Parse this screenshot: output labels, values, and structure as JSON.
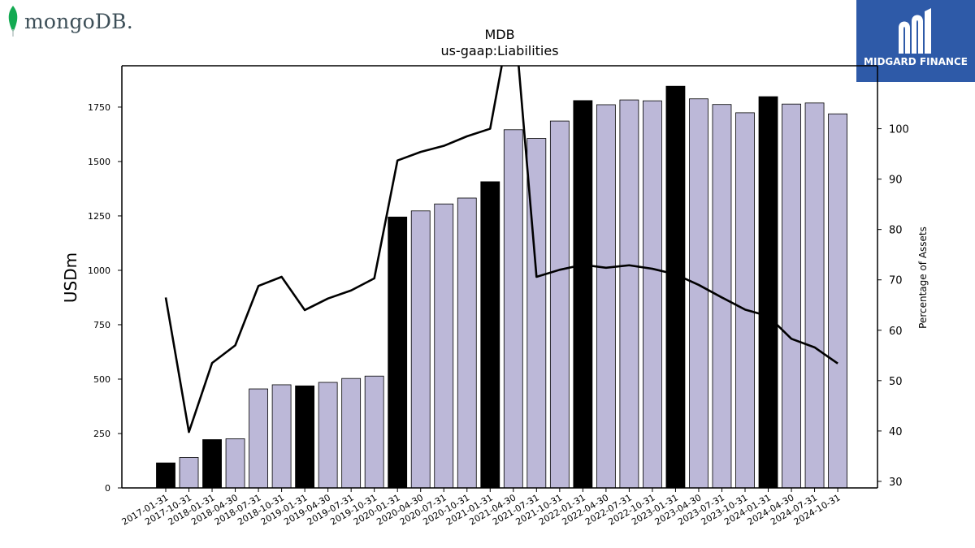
{
  "brand": {
    "left_logo_text": "mongoDB.",
    "left_logo_icon": "leaf-icon",
    "right_logo_text": "MIDGARD FINANCE",
    "right_logo_icon": "midgard-m-icon",
    "right_logo_bg": "#2e5aa8"
  },
  "chart_data": {
    "type": "bar",
    "title": "MDB",
    "subtitle": "us-gaap:Liabilities",
    "ylabel": "USDm",
    "y2label": "Percentage of Assets",
    "ylim": [
      0,
      1940
    ],
    "y2lim": [
      28.7,
      112.5
    ],
    "yticks": [
      0,
      250,
      500,
      750,
      1000,
      1250,
      1500,
      1750
    ],
    "y2ticks": [
      30,
      40,
      50,
      60,
      70,
      80,
      90,
      100
    ],
    "grid": false,
    "colors": {
      "annual": "#000000",
      "quarterly": "#bcb8d8",
      "line": "#000000"
    },
    "categories": [
      "2017-01-31",
      "2017-10-31",
      "2018-01-31",
      "2018-04-30",
      "2018-07-31",
      "2018-10-31",
      "2019-01-31",
      "2019-04-30",
      "2019-07-31",
      "2019-10-31",
      "2020-01-31",
      "2020-04-30",
      "2020-07-31",
      "2020-10-31",
      "2021-01-31",
      "2021-04-30",
      "2021-07-31",
      "2021-10-31",
      "2022-01-31",
      "2022-04-30",
      "2022-07-31",
      "2022-10-31",
      "2023-01-31",
      "2023-04-30",
      "2023-07-31",
      "2023-10-31",
      "2024-01-31",
      "2024-04-30",
      "2024-07-31",
      "2024-10-31"
    ],
    "series": [
      {
        "kind": "bar",
        "values": [
          115,
          140,
          222,
          226,
          455,
          474,
          469,
          485,
          503,
          514,
          1245,
          1273,
          1305,
          1332,
          1407,
          1646,
          1606,
          1686,
          1780,
          1761,
          1783,
          1779,
          1846,
          1788,
          1762,
          1724,
          1798,
          1764,
          1769,
          1719
        ],
        "annual": [
          true,
          false,
          true,
          false,
          false,
          false,
          true,
          false,
          false,
          false,
          true,
          false,
          false,
          false,
          true,
          false,
          false,
          false,
          true,
          false,
          false,
          false,
          true,
          false,
          false,
          false,
          true,
          false,
          false,
          false
        ]
      },
      {
        "kind": "line",
        "axis": "right",
        "values": [
          66.5,
          39.8,
          53.5,
          57.0,
          68.8,
          70.6,
          64.0,
          66.3,
          67.9,
          70.3,
          93.7,
          95.4,
          96.6,
          98.5,
          100.0,
          125.0,
          70.6,
          72.0,
          73.0,
          72.4,
          72.9,
          72.2,
          71.1,
          69.0,
          66.5,
          64.1,
          62.8,
          58.3,
          56.6,
          53.4
        ]
      }
    ]
  }
}
